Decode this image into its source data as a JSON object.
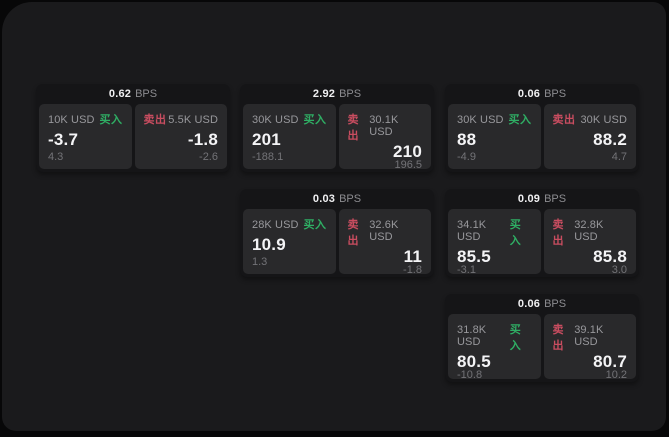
{
  "colors": {
    "buy_green": "#2fae64",
    "sell_red": "#c94d60",
    "panel_bg": "#29292b",
    "card_bg": "#151517",
    "screen_bg": "#1a1a1c"
  },
  "labels": {
    "bps_unit": "BPS",
    "buy": "买入",
    "sell": "卖出"
  },
  "cards": [
    {
      "col": 1,
      "row": 1,
      "bps": "0.62",
      "unit": "BPS",
      "buy": {
        "amount": "10K USD",
        "label": "买入",
        "price": "-3.7",
        "change": "4.3"
      },
      "sell": {
        "amount": "5.5K USD",
        "label": "卖出",
        "price": "-1.8",
        "change": "-2.6"
      }
    },
    {
      "col": 2,
      "row": 1,
      "bps": "2.92",
      "unit": "BPS",
      "buy": {
        "amount": "30K USD",
        "label": "买入",
        "price": "201",
        "change": "-188.1"
      },
      "sell": {
        "amount": "30.1K USD",
        "label": "卖出",
        "price": "210",
        "change": "196.5"
      }
    },
    {
      "col": 3,
      "row": 1,
      "bps": "0.06",
      "unit": "BPS",
      "buy": {
        "amount": "30K USD",
        "label": "买入",
        "price": "88",
        "change": "-4.9"
      },
      "sell": {
        "amount": "30K USD",
        "label": "卖出",
        "price": "88.2",
        "change": "4.7"
      }
    },
    {
      "col": 2,
      "row": 2,
      "bps": "0.03",
      "unit": "BPS",
      "buy": {
        "amount": "28K USD",
        "label": "买入",
        "price": "10.9",
        "change": "1.3"
      },
      "sell": {
        "amount": "32.6K USD",
        "label": "卖出",
        "price": "11",
        "change": "-1.8"
      }
    },
    {
      "col": 3,
      "row": 2,
      "bps": "0.09",
      "unit": "BPS",
      "buy": {
        "amount": "34.1K USD",
        "label": "买入",
        "price": "85.5",
        "change": "-3.1"
      },
      "sell": {
        "amount": "32.8K USD",
        "label": "卖出",
        "price": "85.8",
        "change": "3.0"
      }
    },
    {
      "col": 3,
      "row": 3,
      "bps": "0.06",
      "unit": "BPS",
      "buy": {
        "amount": "31.8K USD",
        "label": "买入",
        "price": "80.5",
        "change": "-10.8"
      },
      "sell": {
        "amount": "39.1K USD",
        "label": "卖出",
        "price": "80.7",
        "change": "10.2"
      }
    }
  ]
}
